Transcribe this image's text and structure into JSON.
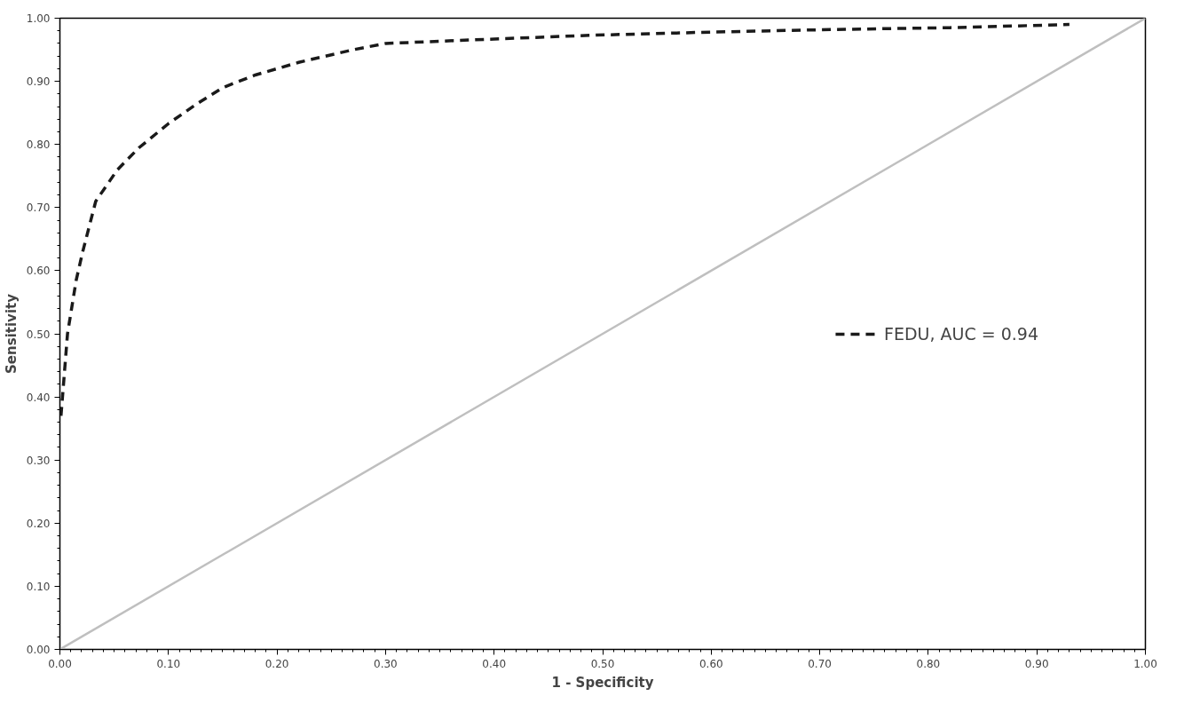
{
  "chart_data": {
    "type": "line",
    "xlabel": "1 - Specificity",
    "ylabel": "Sensitivity",
    "xlim": [
      0,
      1
    ],
    "ylim": [
      0,
      1
    ],
    "xticks": [
      {
        "value": 0,
        "label": "0.00"
      },
      {
        "value": 0.1,
        "label": "0.10"
      },
      {
        "value": 0.2,
        "label": "0.20"
      },
      {
        "value": 0.3,
        "label": "0.30"
      },
      {
        "value": 0.4,
        "label": "0.40"
      },
      {
        "value": 0.5,
        "label": "0.50"
      },
      {
        "value": 0.6,
        "label": "0.60"
      },
      {
        "value": 0.7,
        "label": "0.70"
      },
      {
        "value": 0.8,
        "label": "0.80"
      },
      {
        "value": 0.9,
        "label": "0.90"
      },
      {
        "value": 1,
        "label": "1.00"
      }
    ],
    "yticks": [
      {
        "value": 0,
        "label": "0.00"
      },
      {
        "value": 0.1,
        "label": "0.10"
      },
      {
        "value": 0.2,
        "label": "0.20"
      },
      {
        "value": 0.3,
        "label": "0.30"
      },
      {
        "value": 0.4,
        "label": "0.40"
      },
      {
        "value": 0.5,
        "label": "0.50"
      },
      {
        "value": 0.6,
        "label": "0.60"
      },
      {
        "value": 0.7,
        "label": "0.70"
      },
      {
        "value": 0.8,
        "label": "0.80"
      },
      {
        "value": 0.9,
        "label": "0.90"
      },
      {
        "value": 1,
        "label": "1.00"
      }
    ],
    "grid": false,
    "legend": "right",
    "marker": "none",
    "series": [
      {
        "name": "FEDU, AUC = 0.94",
        "color": "#1a1a1a",
        "line_style": "dashed",
        "x": [
          0.001,
          0.007,
          0.015,
          0.021,
          0.033,
          0.053,
          0.073,
          0.1,
          0.125,
          0.15,
          0.18,
          0.22,
          0.27,
          0.3,
          0.4,
          0.49,
          0.6,
          0.71,
          0.82,
          0.93
        ],
        "values": [
          0.37,
          0.5,
          0.585,
          0.63,
          0.71,
          0.76,
          0.795,
          0.833,
          0.863,
          0.89,
          0.91,
          0.93,
          0.95,
          0.96,
          0.967,
          0.973,
          0.978,
          0.982,
          0.985,
          0.99
        ]
      },
      {
        "color": "#bfbfbf",
        "line_style": "solid",
        "x": [
          0,
          1
        ],
        "values": [
          0,
          1
        ]
      }
    ]
  }
}
